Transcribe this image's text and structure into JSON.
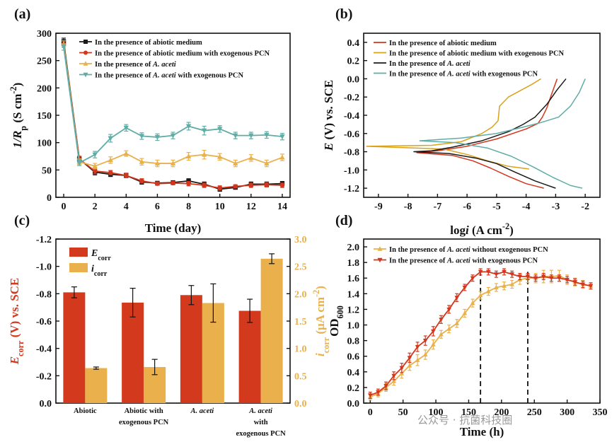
{
  "colors": {
    "black": "#1a1a1a",
    "red": "#d2371e",
    "orange": "#e9b04c",
    "teal": "#5fada6",
    "gold": "#d9a21c",
    "bar_red": "#d33a1d",
    "bar_orange": "#e9b04c"
  },
  "watermark": "公众号 · 抗菌科技圈",
  "chart_data": [
    {
      "panel": "(a)",
      "type": "line",
      "xlabel": "Time (day)",
      "ylabel_main": "1/R",
      "ylabel_sub": "p",
      "ylabel_tail": " (S cm",
      "ylabel_sup": "-2",
      "ylabel_close": ")",
      "xlim": [
        -0.5,
        14.5
      ],
      "ylim": [
        0,
        300
      ],
      "xticks": [
        0,
        2,
        4,
        6,
        8,
        10,
        12,
        14
      ],
      "yticks": [
        0,
        50,
        100,
        150,
        200,
        250,
        300
      ],
      "x": [
        0,
        1,
        2,
        3,
        4,
        5,
        6,
        7,
        8,
        9,
        10,
        11,
        12,
        13,
        14
      ],
      "legend_position": "top-right",
      "series": [
        {
          "name_parts": [
            "In the presence of abiotic medium"
          ],
          "color": "black",
          "marker": "square",
          "values": [
            285,
            70,
            46,
            42,
            40,
            28,
            26,
            27,
            30,
            24,
            15,
            18,
            24,
            24,
            25
          ],
          "err": [
            6,
            5,
            5,
            4,
            4,
            4,
            3,
            3,
            4,
            4,
            4,
            3,
            4,
            4,
            4
          ]
        },
        {
          "name_parts": [
            "In the presence of abiotic medium with exogenous PCN"
          ],
          "color": "red",
          "marker": "circle",
          "values": [
            280,
            70,
            48,
            45,
            40,
            30,
            25,
            26,
            25,
            22,
            17,
            20,
            22,
            23,
            22
          ],
          "err": [
            6,
            5,
            5,
            4,
            4,
            4,
            3,
            3,
            4,
            4,
            4,
            3,
            4,
            4,
            4
          ]
        },
        {
          "name_parts": [
            "In the presence of ",
            "A. aceti"
          ],
          "color": "orange",
          "marker": "triangle-up",
          "values": [
            280,
            65,
            57,
            68,
            80,
            65,
            62,
            62,
            75,
            78,
            74,
            62,
            72,
            62,
            73
          ],
          "err": [
            6,
            5,
            5,
            6,
            5,
            6,
            6,
            6,
            7,
            8,
            6,
            6,
            6,
            6,
            6
          ]
        },
        {
          "name_parts": [
            "In the presence of ",
            "A. aceti",
            " with exogenous PCN"
          ],
          "color": "teal",
          "marker": "triangle-down",
          "values": [
            275,
            63,
            78,
            108,
            127,
            112,
            110,
            113,
            130,
            122,
            125,
            113,
            113,
            114,
            111
          ],
          "err": [
            6,
            5,
            6,
            7,
            6,
            6,
            6,
            6,
            7,
            8,
            6,
            6,
            6,
            6,
            6
          ]
        }
      ]
    },
    {
      "panel": "(b)",
      "type": "line",
      "xlabel_main": "log",
      "xlabel_it": "i",
      "xlabel_tail": " (A cm",
      "xlabel_sup": "-2",
      "xlabel_close": ")",
      "ylabel_it": "E",
      "ylabel_tail": " (V) vs. SCE",
      "xlim": [
        -9.5,
        -1.5
      ],
      "ylim": [
        -1.3,
        0.5
      ],
      "xticks": [
        -9,
        -8,
        -7,
        -6,
        -5,
        -4,
        -3,
        -2
      ],
      "yticks": [
        -1.2,
        -1.0,
        -0.8,
        -0.6,
        -0.4,
        -0.2,
        0.0,
        0.2,
        0.4
      ],
      "legend_position": "top-right",
      "series": [
        {
          "name_parts": [
            "In the presence of abiotic medium"
          ],
          "color": "red",
          "points": [
            [
              -2.95,
              0.0
            ],
            [
              -3.15,
              -0.18
            ],
            [
              -3.3,
              -0.32
            ],
            [
              -3.45,
              -0.42
            ],
            [
              -3.6,
              -0.49
            ],
            [
              -4.0,
              -0.55
            ],
            [
              -5.0,
              -0.66
            ],
            [
              -6.0,
              -0.74
            ],
            [
              -7.0,
              -0.79
            ],
            [
              -7.7,
              -0.81
            ],
            [
              -6.5,
              -0.84
            ],
            [
              -5.8,
              -0.9
            ],
            [
              -5.2,
              -0.98
            ],
            [
              -4.6,
              -1.07
            ],
            [
              -4.0,
              -1.15
            ],
            [
              -3.4,
              -1.2
            ]
          ]
        },
        {
          "name_parts": [
            "In the presence of abiotic medium with exogenous PCN"
          ],
          "color": "gold",
          "points": [
            [
              -3.5,
              0.0
            ],
            [
              -3.8,
              -0.06
            ],
            [
              -4.2,
              -0.13
            ],
            [
              -4.6,
              -0.2
            ],
            [
              -4.9,
              -0.3
            ],
            [
              -4.95,
              -0.46
            ],
            [
              -5.15,
              -0.53
            ],
            [
              -5.5,
              -0.6
            ],
            [
              -6.2,
              -0.69
            ],
            [
              -7.2,
              -0.73
            ],
            [
              -9.4,
              -0.74
            ],
            [
              -6.8,
              -0.77
            ],
            [
              -6.0,
              -0.83
            ],
            [
              -5.3,
              -0.9
            ],
            [
              -4.6,
              -0.96
            ],
            [
              -3.9,
              -0.99
            ]
          ]
        },
        {
          "name_parts": [
            "In the presence of ",
            "A. aceti"
          ],
          "color": "black",
          "points": [
            [
              -2.65,
              0.0
            ],
            [
              -2.95,
              -0.12
            ],
            [
              -3.3,
              -0.28
            ],
            [
              -3.7,
              -0.42
            ],
            [
              -4.1,
              -0.5
            ],
            [
              -4.6,
              -0.58
            ],
            [
              -5.5,
              -0.68
            ],
            [
              -6.5,
              -0.75
            ],
            [
              -7.2,
              -0.79
            ],
            [
              -7.8,
              -0.8
            ],
            [
              -6.6,
              -0.82
            ],
            [
              -5.7,
              -0.87
            ],
            [
              -5.0,
              -0.93
            ],
            [
              -4.4,
              -1.02
            ],
            [
              -3.7,
              -1.12
            ],
            [
              -3.0,
              -1.2
            ]
          ]
        },
        {
          "name_parts": [
            "In the presence of ",
            "A. aceti",
            " with exogenous PCN"
          ],
          "color": "teal",
          "points": [
            [
              -2.0,
              0.0
            ],
            [
              -2.2,
              -0.15
            ],
            [
              -2.5,
              -0.3
            ],
            [
              -2.9,
              -0.42
            ],
            [
              -3.5,
              -0.48
            ],
            [
              -4.1,
              -0.53
            ],
            [
              -5.0,
              -0.6
            ],
            [
              -6.2,
              -0.65
            ],
            [
              -7.6,
              -0.68
            ],
            [
              -6.4,
              -0.7
            ],
            [
              -5.3,
              -0.76
            ],
            [
              -4.5,
              -0.85
            ],
            [
              -3.8,
              -0.96
            ],
            [
              -3.1,
              -1.08
            ],
            [
              -2.5,
              -1.17
            ],
            [
              -2.1,
              -1.2
            ]
          ]
        }
      ]
    },
    {
      "panel": "(c)",
      "type": "bar",
      "categories": [
        [
          "Abiotic"
        ],
        [
          "Abiotic  with",
          "exogenous PCN"
        ],
        [
          "A. aceti"
        ],
        [
          "A. aceti",
          "  with",
          "exogenous PCN"
        ]
      ],
      "category_italic": [
        false,
        false,
        true,
        true
      ],
      "ylabel_left_it": "E",
      "ylabel_left_sub": "corr",
      "ylabel_left_tail": " (V) vs. SCE",
      "ylabel_right_it": "i",
      "ylabel_right_sub": "corr",
      "ylabel_right_tail": " (μA cm",
      "ylabel_right_sup": "-2",
      "ylabel_right_close": ")",
      "ylim_left": [
        0,
        -1.2
      ],
      "yticks_left": [
        0.0,
        -0.2,
        -0.4,
        -0.6,
        -0.8,
        -1.0,
        -1.2
      ],
      "ylim_right": [
        0,
        3.0
      ],
      "yticks_right": [
        0.0,
        0.5,
        1.0,
        1.5,
        2.0,
        2.5,
        3.0
      ],
      "legend_position": "top-left",
      "series": [
        {
          "name_it": "E",
          "name_sub": "corr",
          "color": "bar_red",
          "axis": "left",
          "values": [
            -0.81,
            -0.735,
            -0.79,
            -0.675
          ],
          "err": [
            0.04,
            0.105,
            0.07,
            0.085
          ]
        },
        {
          "name_it": "i",
          "name_sub": "corr",
          "color": "bar_orange",
          "axis": "right",
          "values": [
            0.64,
            0.66,
            1.83,
            2.64
          ],
          "err": [
            0.02,
            0.14,
            0.35,
            0.09
          ]
        }
      ]
    },
    {
      "panel": "(d)",
      "type": "line",
      "xlabel": "Time (h)",
      "ylabel_main": "OD",
      "ylabel_sub": "600",
      "xlim": [
        -10,
        350
      ],
      "ylim": [
        0,
        2.1
      ],
      "xticks": [
        0,
        50,
        100,
        150,
        200,
        250,
        300,
        350
      ],
      "yticks": [
        0.0,
        0.2,
        0.4,
        0.6,
        0.8,
        1.0,
        1.2,
        1.4,
        1.6,
        1.8,
        2.0
      ],
      "vlines": [
        168,
        240
      ],
      "legend_position": "top-left",
      "x": [
        0,
        12,
        24,
        36,
        48,
        60,
        72,
        84,
        96,
        108,
        120,
        132,
        144,
        156,
        168,
        180,
        192,
        204,
        216,
        228,
        240,
        252,
        264,
        276,
        288,
        300,
        312,
        324,
        336
      ],
      "series": [
        {
          "name_parts": [
            "In the presence of ",
            "A. aceti",
            " without exogenous PCN"
          ],
          "color": "orange",
          "marker": "triangle-up",
          "values": [
            0.08,
            0.12,
            0.2,
            0.28,
            0.38,
            0.48,
            0.55,
            0.62,
            0.75,
            0.88,
            0.95,
            1.02,
            1.15,
            1.28,
            1.38,
            1.43,
            1.48,
            1.5,
            1.52,
            1.58,
            1.6,
            1.6,
            1.62,
            1.62,
            1.63,
            1.58,
            1.55,
            1.52,
            1.5
          ],
          "err": [
            0.04,
            0.04,
            0.05,
            0.05,
            0.06,
            0.06,
            0.07,
            0.06,
            0.06,
            0.05,
            0.05,
            0.05,
            0.05,
            0.05,
            0.05,
            0.05,
            0.05,
            0.05,
            0.05,
            0.06,
            0.06,
            0.06,
            0.08,
            0.08,
            0.07,
            0.06,
            0.05,
            0.05,
            0.04
          ]
        },
        {
          "name_parts": [
            "In the presence of ",
            "A. aceti",
            " with exogenous PCN"
          ],
          "color": "red",
          "marker": "triangle-down",
          "values": [
            0.1,
            0.14,
            0.22,
            0.35,
            0.45,
            0.58,
            0.72,
            0.8,
            0.92,
            1.07,
            1.2,
            1.35,
            1.48,
            1.6,
            1.68,
            1.68,
            1.65,
            1.68,
            1.65,
            1.62,
            1.62,
            1.6,
            1.62,
            1.6,
            1.6,
            1.58,
            1.55,
            1.52,
            1.5
          ],
          "err": [
            0.04,
            0.04,
            0.05,
            0.05,
            0.06,
            0.06,
            0.06,
            0.06,
            0.06,
            0.05,
            0.05,
            0.05,
            0.04,
            0.04,
            0.04,
            0.04,
            0.04,
            0.04,
            0.04,
            0.04,
            0.04,
            0.04,
            0.04,
            0.04,
            0.04,
            0.04,
            0.04,
            0.04,
            0.04
          ]
        }
      ]
    }
  ]
}
